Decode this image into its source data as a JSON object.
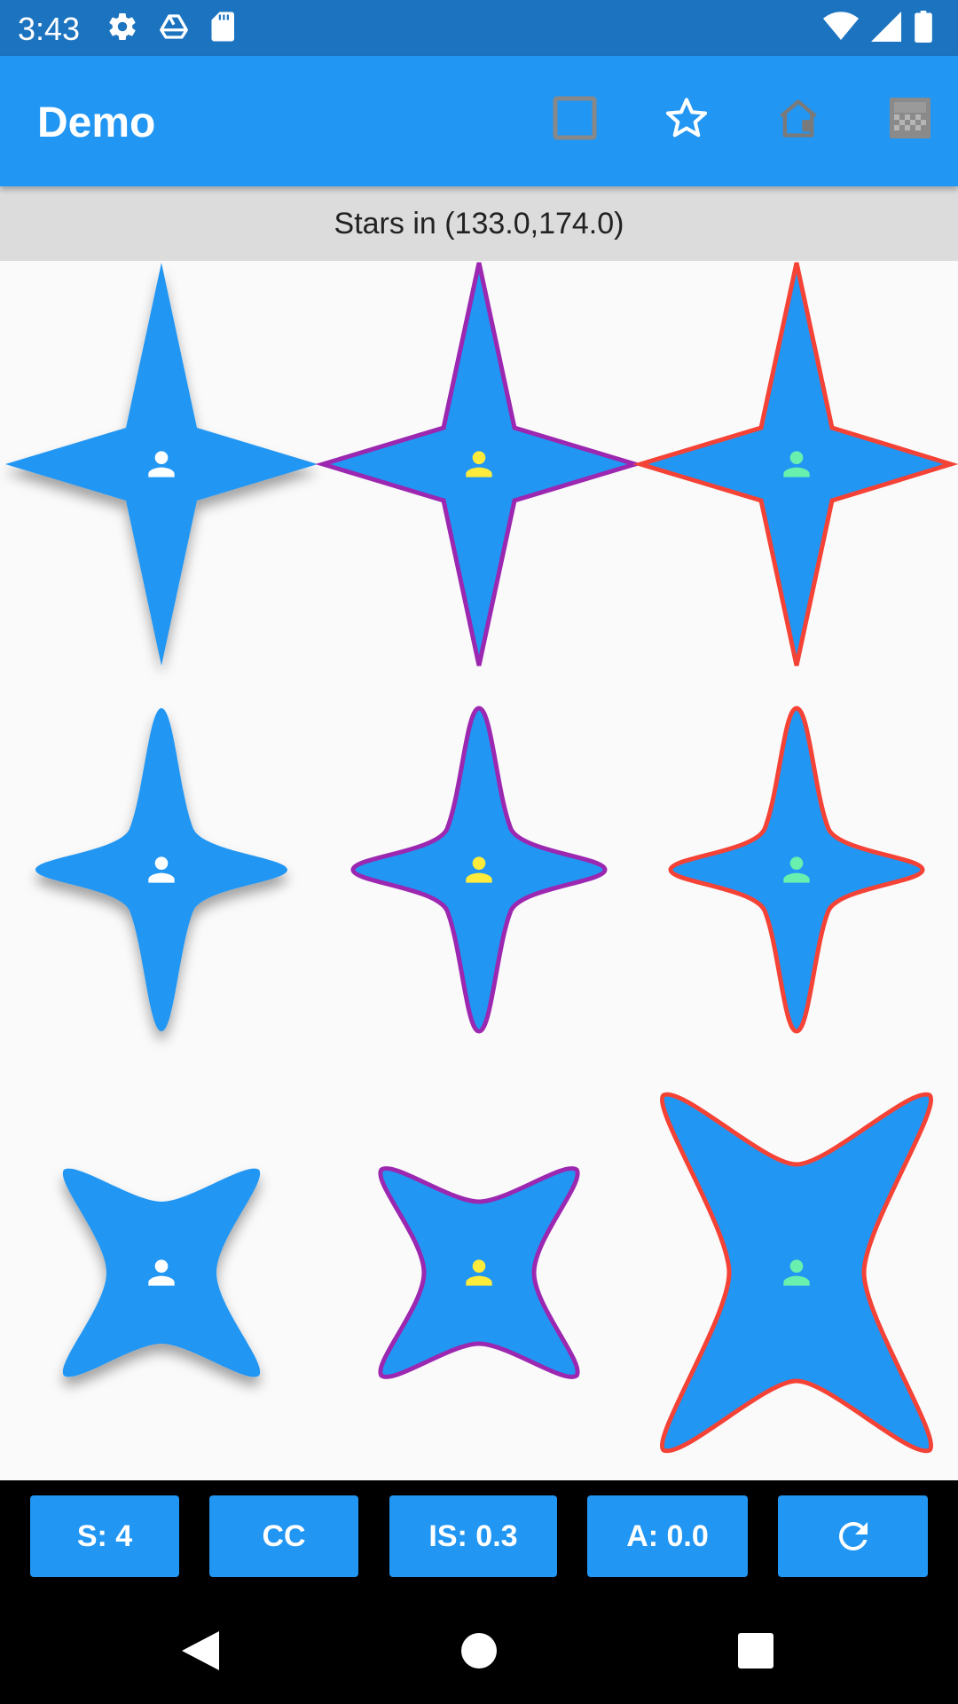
{
  "status_bar": {
    "time": "3:43",
    "left_icons": [
      "settings-icon",
      "drive-icon",
      "sd-card-icon"
    ],
    "right_icons": [
      "wifi-icon",
      "signal-icon",
      "battery-icon"
    ]
  },
  "app_bar": {
    "title": "Demo",
    "actions": [
      "square-outline-icon",
      "star-outline-icon",
      "house-icon",
      "gradient-icon"
    ]
  },
  "info": {
    "text": "Stars in (133.0,174.0)"
  },
  "shapes": {
    "fill_color": "#2196f3",
    "icon_colors": [
      "#ffffff",
      "#ffeb3b",
      "#69f0ae"
    ],
    "border_colors": [
      "none",
      "#9c27b0",
      "#f44336"
    ],
    "star_points": 4
  },
  "controls": {
    "sides": "S: 4",
    "cc": "CC",
    "inner_scale": "IS: 0.3",
    "angle": "A: 0.0",
    "reset_icon": "refresh-icon"
  },
  "nav_bar": {
    "buttons": [
      "back-icon",
      "home-icon",
      "recents-icon"
    ]
  }
}
